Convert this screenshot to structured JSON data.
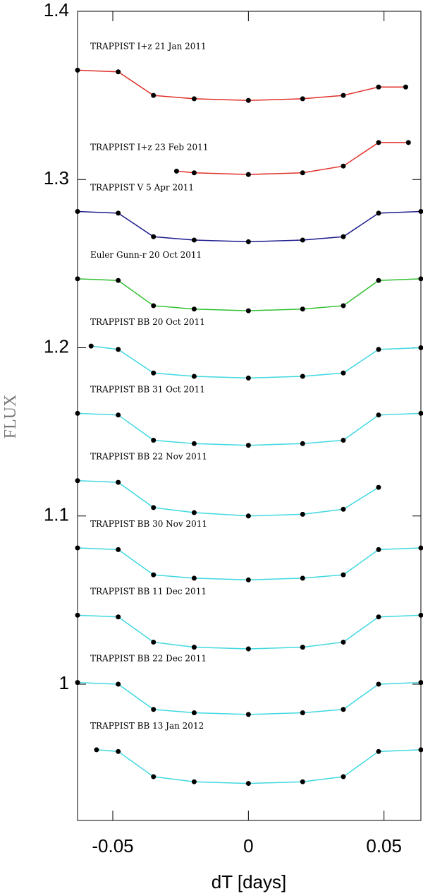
{
  "chart_data": {
    "type": "line",
    "markers": true,
    "xlabel": "dT [days]",
    "ylabel": "FLUX",
    "xlim": [
      -0.063,
      0.0636
    ],
    "ylim": [
      0.919,
      1.4
    ],
    "xticks": [
      -0.05,
      0,
      0.05
    ],
    "yticks": [
      1,
      1.1,
      1.2,
      1.3,
      1.4
    ],
    "marker_color": "#000000",
    "series": [
      {
        "name": "TRAPPIST I+z 21 Jan 2011",
        "color": "#e0302a",
        "x": [
          -0.063,
          -0.048,
          -0.035,
          -0.02,
          0,
          0.02,
          0.035,
          0.048,
          0.058
        ],
        "values": [
          1.365,
          1.364,
          1.35,
          1.348,
          1.347,
          1.348,
          1.35,
          1.355,
          1.355
        ]
      },
      {
        "name": "TRAPPIST I+z 23 Feb 2011",
        "color": "#e0302a",
        "x": [
          -0.0265,
          -0.02,
          0,
          0.02,
          0.035,
          0.048,
          0.059
        ],
        "values": [
          1.305,
          1.304,
          1.303,
          1.304,
          1.308,
          1.322,
          1.322
        ]
      },
      {
        "name": "TRAPPIST V 5 Apr 2011",
        "color": "#1a1a8c",
        "x": [
          -0.063,
          -0.048,
          -0.035,
          -0.02,
          0,
          0.02,
          0.035,
          0.048,
          0.0636
        ],
        "values": [
          1.281,
          1.28,
          1.266,
          1.264,
          1.263,
          1.264,
          1.266,
          1.28,
          1.281
        ]
      },
      {
        "name": "Euler Gunn-r 20 Oct 2011",
        "color": "#30c030",
        "x": [
          -0.063,
          -0.048,
          -0.035,
          -0.02,
          0,
          0.02,
          0.035,
          0.048,
          0.0636
        ],
        "values": [
          1.241,
          1.24,
          1.225,
          1.223,
          1.222,
          1.223,
          1.225,
          1.24,
          1.241
        ]
      },
      {
        "name": "TRAPPIST BB 20 Oct 2011",
        "color": "#40d8e0",
        "x": [
          -0.058,
          -0.048,
          -0.035,
          -0.02,
          0,
          0.02,
          0.035,
          0.048,
          0.0636
        ],
        "values": [
          1.201,
          1.199,
          1.185,
          1.183,
          1.182,
          1.183,
          1.185,
          1.199,
          1.2
        ]
      },
      {
        "name": "TRAPPIST BB 31 Oct 2011",
        "color": "#40d8e0",
        "x": [
          -0.063,
          -0.048,
          -0.035,
          -0.02,
          0,
          0.02,
          0.035,
          0.048,
          0.0636
        ],
        "values": [
          1.161,
          1.16,
          1.145,
          1.143,
          1.142,
          1.143,
          1.145,
          1.16,
          1.161
        ]
      },
      {
        "name": "TRAPPIST BB 22 Nov 2011",
        "color": "#40d8e0",
        "x": [
          -0.063,
          -0.048,
          -0.035,
          -0.02,
          0,
          0.02,
          0.035,
          0.048
        ],
        "values": [
          1.121,
          1.12,
          1.105,
          1.102,
          1.1,
          1.101,
          1.104,
          1.117
        ]
      },
      {
        "name": "TRAPPIST BB 30 Nov 2011",
        "color": "#40d8e0",
        "x": [
          -0.063,
          -0.048,
          -0.035,
          -0.02,
          0,
          0.02,
          0.035,
          0.048,
          0.0636
        ],
        "values": [
          1.081,
          1.08,
          1.065,
          1.063,
          1.062,
          1.063,
          1.065,
          1.08,
          1.081
        ]
      },
      {
        "name": "TRAPPIST BB 11 Dec 2011",
        "color": "#40d8e0",
        "x": [
          -0.063,
          -0.048,
          -0.035,
          -0.02,
          0,
          0.02,
          0.035,
          0.048,
          0.0636
        ],
        "values": [
          1.041,
          1.04,
          1.025,
          1.022,
          1.021,
          1.022,
          1.025,
          1.04,
          1.041
        ]
      },
      {
        "name": "TRAPPIST BB 22 Dec 2011",
        "color": "#40d8e0",
        "x": [
          -0.063,
          -0.048,
          -0.035,
          -0.02,
          0,
          0.02,
          0.035,
          0.048,
          0.0636
        ],
        "values": [
          1.001,
          1.0,
          0.985,
          0.983,
          0.982,
          0.983,
          0.985,
          1.0,
          1.001
        ]
      },
      {
        "name": "TRAPPIST BB 13 Jan 2012",
        "color": "#40d8e0",
        "x": [
          -0.056,
          -0.048,
          -0.035,
          -0.02,
          0,
          0.02,
          0.035,
          0.048,
          0.0636
        ],
        "values": [
          0.961,
          0.96,
          0.945,
          0.942,
          0.941,
          0.942,
          0.945,
          0.96,
          0.961
        ]
      }
    ]
  }
}
